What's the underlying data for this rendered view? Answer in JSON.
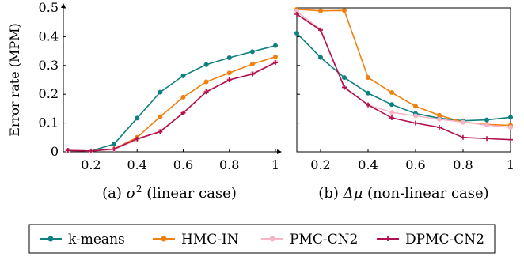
{
  "chart_data": [
    {
      "type": "line",
      "panel_id": "a",
      "caption": {
        "prefix": "(a) ",
        "math": "σ",
        "sup": "2",
        "suffix": " (linear case)"
      },
      "ylabel": "Error rate (MPM)",
      "xlim": [
        0.08,
        1.0
      ],
      "ylim": [
        0,
        0.5
      ],
      "x_ticks": [
        "0.2",
        "0.4",
        "0.6",
        "0.8",
        "1"
      ],
      "x_tick_values": [
        0.2,
        0.4,
        0.6,
        0.8,
        1.0
      ],
      "y_ticks": [
        "0",
        "0.1",
        "0.2",
        "0.3",
        "0.4",
        "0.5"
      ],
      "y_tick_values": [
        0,
        0.1,
        0.2,
        0.3,
        0.4,
        0.5
      ],
      "x": [
        0.1,
        0.2,
        0.3,
        0.4,
        0.5,
        0.6,
        0.7,
        0.8,
        0.9,
        1.0
      ],
      "series": [
        {
          "name": "k-means",
          "color": "#0f8080",
          "marker": "circle",
          "values": [
            0.005,
            0.003,
            0.027,
            0.117,
            0.207,
            0.264,
            0.303,
            0.327,
            0.348,
            0.369
          ]
        },
        {
          "name": "HMC-IN",
          "color": "#f08010",
          "marker": "circle",
          "values": [
            0.005,
            0.003,
            0.01,
            0.05,
            0.122,
            0.19,
            0.243,
            0.274,
            0.305,
            0.33
          ]
        },
        {
          "name": "PMC-CN2",
          "color": "#f5b5c5",
          "marker": "circle",
          "values": [
            0.005,
            0.003,
            0.008,
            0.042,
            0.072,
            0.135,
            0.21,
            0.249,
            0.272,
            0.312
          ]
        },
        {
          "name": "DPMC-CN2",
          "color": "#b0104f",
          "marker": "plus",
          "values": [
            0.005,
            0.003,
            0.01,
            0.045,
            0.07,
            0.135,
            0.208,
            0.25,
            0.27,
            0.31
          ]
        }
      ]
    },
    {
      "type": "line",
      "panel_id": "b",
      "caption": {
        "prefix": "(b) ",
        "math": "Δμ",
        "sup": "",
        "suffix": " (non-linear case)"
      },
      "ylabel": "",
      "xlim": [
        0.1,
        1.0
      ],
      "ylim": [
        0,
        0.5
      ],
      "x_ticks": [
        "0.2",
        "0.4",
        "0.6",
        "0.8",
        "1"
      ],
      "x_tick_values": [
        0.2,
        0.4,
        0.6,
        0.8,
        1.0
      ],
      "x": [
        0.1,
        0.2,
        0.3,
        0.4,
        0.5,
        0.6,
        0.7,
        0.8,
        0.9,
        1.0
      ],
      "series": [
        {
          "name": "k-means",
          "color": "#0f8080",
          "marker": "circle",
          "values": [
            0.412,
            0.328,
            0.258,
            0.204,
            0.164,
            0.133,
            0.117,
            0.108,
            0.111,
            0.12
          ]
        },
        {
          "name": "HMC-IN",
          "color": "#f08010",
          "marker": "circle",
          "values": [
            0.495,
            0.49,
            0.491,
            0.258,
            0.206,
            0.158,
            0.127,
            0.103,
            0.095,
            0.092
          ]
        },
        {
          "name": "PMC-CN2",
          "color": "#f5b5c5",
          "marker": "circle",
          "values": [
            0.488,
            0.425,
            0.224,
            0.163,
            0.137,
            0.125,
            0.113,
            0.103,
            0.093,
            0.085
          ]
        },
        {
          "name": "DPMC-CN2",
          "color": "#b0104f",
          "marker": "plus",
          "values": [
            0.478,
            0.423,
            0.224,
            0.163,
            0.118,
            0.1,
            0.085,
            0.05,
            0.046,
            0.042
          ]
        }
      ]
    }
  ],
  "legend": {
    "placement": "bottom-center",
    "entries": [
      "k-means",
      "HMC-IN",
      "PMC-CN2",
      "DPMC-CN2"
    ]
  }
}
